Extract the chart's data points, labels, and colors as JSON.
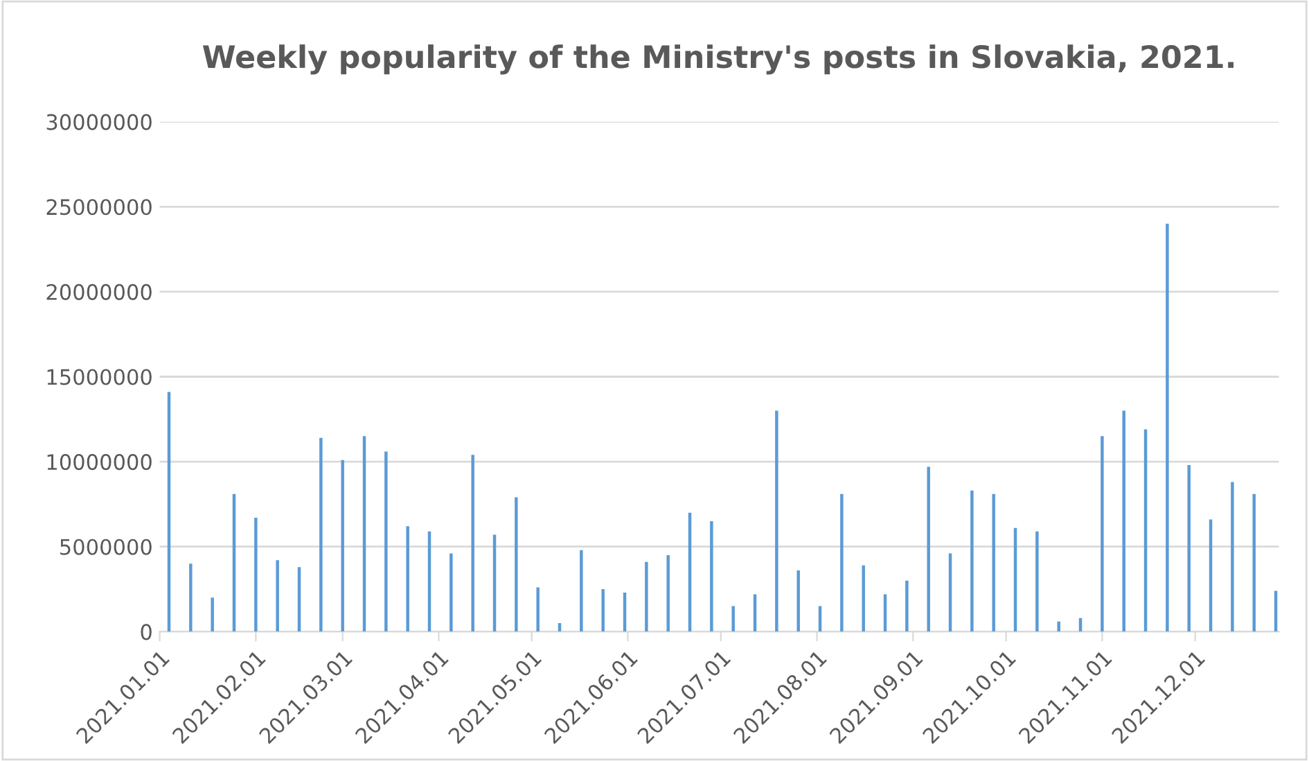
{
  "chart_data": {
    "type": "bar",
    "title": "Weekly popularity of the Ministry's posts in Slovakia, 2021.",
    "x": [
      "2021-01-04",
      "2021-01-11",
      "2021-01-18",
      "2021-01-25",
      "2021-02-01",
      "2021-02-08",
      "2021-02-15",
      "2021-02-22",
      "2021-03-01",
      "2021-03-08",
      "2021-03-15",
      "2021-03-22",
      "2021-03-29",
      "2021-04-05",
      "2021-04-12",
      "2021-04-19",
      "2021-04-26",
      "2021-05-03",
      "2021-05-10",
      "2021-05-17",
      "2021-05-24",
      "2021-05-31",
      "2021-06-07",
      "2021-06-14",
      "2021-06-21",
      "2021-06-28",
      "2021-07-05",
      "2021-07-12",
      "2021-07-19",
      "2021-07-26",
      "2021-08-02",
      "2021-08-09",
      "2021-08-16",
      "2021-08-23",
      "2021-08-30",
      "2021-09-06",
      "2021-09-13",
      "2021-09-20",
      "2021-09-27",
      "2021-10-04",
      "2021-10-11",
      "2021-10-18",
      "2021-10-25",
      "2021-11-01",
      "2021-11-08",
      "2021-11-15",
      "2021-11-22",
      "2021-11-29",
      "2021-12-06",
      "2021-12-13",
      "2021-12-20",
      "2021-12-27"
    ],
    "values": [
      14100000,
      4000000,
      2000000,
      8100000,
      6700000,
      4200000,
      3800000,
      11400000,
      10100000,
      11500000,
      10600000,
      6200000,
      5900000,
      4600000,
      10400000,
      5700000,
      7900000,
      2600000,
      500000,
      4800000,
      2500000,
      2300000,
      4100000,
      4500000,
      7000000,
      6500000,
      1500000,
      2200000,
      13000000,
      3600000,
      1500000,
      8100000,
      3900000,
      2200000,
      3000000,
      9700000,
      4600000,
      8300000,
      8100000,
      6100000,
      5900000,
      600000,
      800000,
      11500000,
      13000000,
      11900000,
      24000000,
      9800000,
      6600000,
      8800000,
      8100000,
      2400000
    ],
    "color": "#5b9bd5",
    "xlim": [
      "2021-01-01",
      "2021-12-28"
    ],
    "xticks": [
      {
        "value": "2021-01-01",
        "label": "2021.01.01"
      },
      {
        "value": "2021-02-01",
        "label": "2021.02.01"
      },
      {
        "value": "2021-03-01",
        "label": "2021.03.01"
      },
      {
        "value": "2021-04-01",
        "label": "2021.04.01"
      },
      {
        "value": "2021-05-01",
        "label": "2021.05.01"
      },
      {
        "value": "2021-06-01",
        "label": "2021.06.01"
      },
      {
        "value": "2021-07-01",
        "label": "2021.07.01"
      },
      {
        "value": "2021-08-01",
        "label": "2021.08.01"
      },
      {
        "value": "2021-09-01",
        "label": "2021.09.01"
      },
      {
        "value": "2021-10-01",
        "label": "2021.10.01"
      },
      {
        "value": "2021-11-01",
        "label": "2021.11.01"
      },
      {
        "value": "2021-12-01",
        "label": "2021.12.01"
      }
    ],
    "ylim": [
      0,
      30000000
    ],
    "yticks": [
      0,
      5000000,
      10000000,
      15000000,
      20000000,
      25000000,
      30000000
    ],
    "grid": "y",
    "legend": false
  }
}
